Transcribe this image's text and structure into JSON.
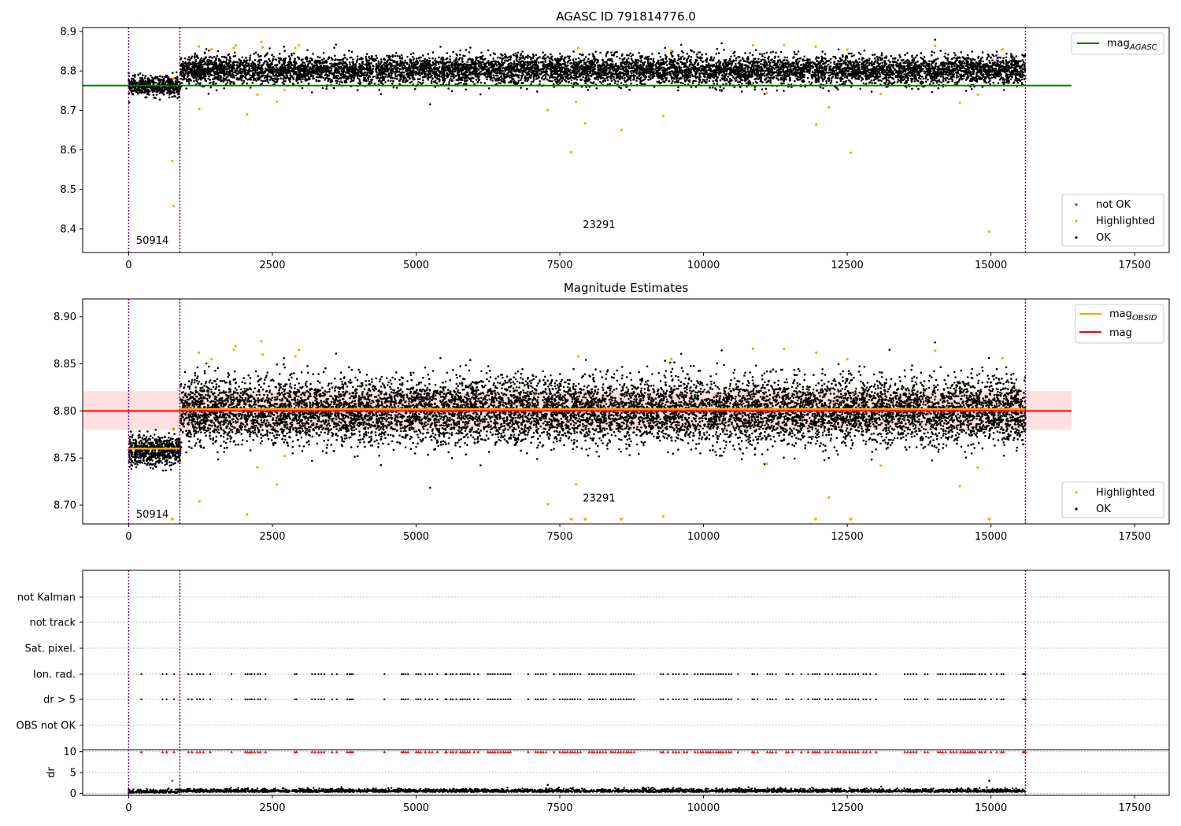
{
  "figure": {
    "title_top": "AGASC ID 791814776.0",
    "title_mid": "Magnitude Estimates"
  },
  "colors": {
    "ok": "#000000",
    "highlighted": "#ffa500",
    "not_ok": "#ff0000",
    "mag_agasc": "#008000",
    "mag_obsid": "#ffa500",
    "mag": "#ff0000",
    "band": "#ffcccc",
    "obs_boundary": "#800080",
    "grid": "#b0b0b0"
  },
  "chart_data": [
    {
      "type": "scatter",
      "title": "AGASC ID 791814776.0",
      "xlim": [
        -800,
        18100
      ],
      "ylim": [
        8.34,
        8.91
      ],
      "xticks": [
        0,
        2500,
        5000,
        7500,
        10000,
        12500,
        15000,
        17500
      ],
      "yticks": [
        8.4,
        8.5,
        8.6,
        8.7,
        8.8,
        8.9
      ],
      "obs_boundaries": [
        0,
        890,
        15600
      ],
      "obs_labels": [
        {
          "text": "50914",
          "x": 130,
          "y": 8.37
        },
        {
          "text": "23291",
          "x": 7900,
          "y": 8.41
        }
      ],
      "lines": [
        {
          "name": "mag_AGASC",
          "y": 8.763,
          "x": [
            -800,
            16400
          ]
        }
      ],
      "ok_clusters": [
        {
          "x": [
            0,
            900
          ],
          "center": 8.762,
          "spread": 0.012
        },
        {
          "x": [
            900,
            15600
          ],
          "center": 8.802,
          "spread": 0.018
        }
      ],
      "highlighted": [
        [
          760,
          8.572
        ],
        [
          780,
          8.458
        ],
        [
          780,
          8.78
        ],
        [
          1230,
          8.704
        ],
        [
          1220,
          8.862
        ],
        [
          1440,
          8.855
        ],
        [
          1830,
          8.858
        ],
        [
          1860,
          8.865
        ],
        [
          2060,
          8.69
        ],
        [
          2240,
          8.74
        ],
        [
          2310,
          8.874
        ],
        [
          2330,
          8.86
        ],
        [
          2580,
          8.722
        ],
        [
          2710,
          8.752
        ],
        [
          2900,
          8.858
        ],
        [
          2960,
          8.865
        ],
        [
          7290,
          8.701
        ],
        [
          7700,
          8.594
        ],
        [
          7780,
          8.722
        ],
        [
          7820,
          8.858
        ],
        [
          7940,
          8.667
        ],
        [
          8570,
          8.651
        ],
        [
          9300,
          8.686
        ],
        [
          9440,
          8.852
        ],
        [
          10860,
          8.865
        ],
        [
          11100,
          8.744
        ],
        [
          11400,
          8.866
        ],
        [
          11950,
          8.862
        ],
        [
          11960,
          8.664
        ],
        [
          12180,
          8.708
        ],
        [
          12500,
          8.854
        ],
        [
          12560,
          8.593
        ],
        [
          13080,
          8.742
        ],
        [
          14030,
          8.864
        ],
        [
          14460,
          8.72
        ],
        [
          14770,
          8.74
        ],
        [
          14970,
          8.393
        ],
        [
          15200,
          8.855
        ]
      ],
      "legend": [
        "mag_AGASC",
        "not OK",
        "Highlighted",
        "OK"
      ]
    },
    {
      "type": "scatter",
      "title": "Magnitude Estimates",
      "xlim": [
        -800,
        18100
      ],
      "ylim": [
        8.68,
        8.919
      ],
      "xticks": [
        0,
        2500,
        5000,
        7500,
        10000,
        12500,
        15000,
        17500
      ],
      "yticks": [
        8.7,
        8.75,
        8.8,
        8.85,
        8.9
      ],
      "obs_boundaries": [
        0,
        890,
        15600
      ],
      "obs_labels": [
        {
          "text": "50914",
          "x": 130,
          "y": 8.69
        },
        {
          "text": "23291",
          "x": 7900,
          "y": 8.707
        }
      ],
      "band": {
        "y": [
          8.78,
          8.821
        ],
        "x": [
          -800,
          16400
        ]
      },
      "lines": [
        {
          "name": "mag",
          "y": 8.8,
          "x": [
            -800,
            16400
          ]
        },
        {
          "name": "mag_OBSID",
          "segments": [
            {
              "x": [
                0,
                890
              ],
              "y": 8.76
            },
            {
              "x": [
                890,
                15600
              ],
              "y": 8.802
            }
          ]
        }
      ],
      "ok_clusters": [
        {
          "x": [
            0,
            900
          ],
          "center": 8.758,
          "spread": 0.008
        },
        {
          "x": [
            900,
            15600
          ],
          "center": 8.8,
          "spread": 0.017
        }
      ],
      "highlighted": [
        [
          760,
          8.683
        ],
        [
          780,
          8.78
        ],
        [
          1230,
          8.704
        ],
        [
          1220,
          8.862
        ],
        [
          1440,
          8.855
        ],
        [
          1830,
          8.865
        ],
        [
          1860,
          8.869
        ],
        [
          2060,
          8.69
        ],
        [
          2240,
          8.74
        ],
        [
          2310,
          8.874
        ],
        [
          2330,
          8.86
        ],
        [
          2580,
          8.722
        ],
        [
          2710,
          8.752
        ],
        [
          2900,
          8.858
        ],
        [
          2960,
          8.865
        ],
        [
          7290,
          8.701
        ],
        [
          7700,
          8.683
        ],
        [
          7780,
          8.722
        ],
        [
          7820,
          8.858
        ],
        [
          7940,
          8.683
        ],
        [
          8570,
          8.683
        ],
        [
          9300,
          8.688
        ],
        [
          9440,
          8.855
        ],
        [
          10860,
          8.866
        ],
        [
          11100,
          8.744
        ],
        [
          11400,
          8.866
        ],
        [
          11950,
          8.683
        ],
        [
          11960,
          8.862
        ],
        [
          12180,
          8.708
        ],
        [
          12500,
          8.855
        ],
        [
          12560,
          8.683
        ],
        [
          13080,
          8.742
        ],
        [
          14030,
          8.864
        ],
        [
          14460,
          8.72
        ],
        [
          14770,
          8.74
        ],
        [
          14970,
          8.683
        ],
        [
          15200,
          8.856
        ]
      ],
      "legend": [
        "mag_OBSID",
        "mag",
        "Highlighted",
        "OK"
      ]
    },
    {
      "type": "scatter",
      "title": "",
      "xlim": [
        -800,
        18100
      ],
      "categories": [
        "not Kalman",
        "not track",
        "Sat. pixel.",
        "Ion. rad.",
        "dr > 5",
        "OBS not OK"
      ],
      "obs_boundaries": [
        0,
        890,
        15600
      ],
      "flag_x": [
        220,
        590,
        660,
        790,
        1040,
        1100,
        1190,
        1240,
        1300,
        1420,
        1790,
        2030,
        2070,
        2110,
        2140,
        2190,
        2250,
        2290,
        2380,
        2890,
        2920,
        3190,
        3240,
        3300,
        3350,
        3400,
        3540,
        3620,
        3800,
        3840,
        3870,
        3900,
        4450,
        4750,
        4780,
        4820,
        4860,
        5000,
        5040,
        5080,
        5160,
        5230,
        5280,
        5370,
        5510,
        5530,
        5600,
        5640,
        5700,
        5770,
        5810,
        5850,
        5890,
        5930,
        6010,
        6080,
        6250,
        6290,
        6330,
        6370,
        6420,
        6470,
        6520,
        6560,
        6600,
        6640,
        6950,
        7080,
        7120,
        7170,
        7210,
        7260,
        7400,
        7500,
        7550,
        7590,
        7630,
        7680,
        7720,
        7760,
        7810,
        7860,
        8010,
        8060,
        8100,
        8150,
        8200,
        8250,
        8300,
        8390,
        8430,
        8470,
        8520,
        8560,
        8610,
        8660,
        8700,
        8740,
        8790,
        9260,
        9300,
        9380,
        9470,
        9520,
        9570,
        9660,
        9710,
        9850,
        9900,
        9950,
        9990,
        10040,
        10080,
        10120,
        10170,
        10220,
        10260,
        10300,
        10340,
        10390,
        10440,
        10480,
        10600,
        10850,
        10880,
        10940,
        11110,
        11160,
        11200,
        11260,
        11440,
        11480,
        11550,
        11700,
        11820,
        11900,
        11940,
        11980,
        12020,
        12120,
        12170,
        12240,
        12330,
        12380,
        12440,
        12480,
        12540,
        12590,
        12640,
        12690,
        12780,
        12830,
        12900,
        13000,
        13500,
        13550,
        13600,
        13650,
        13700,
        13850,
        13900,
        14080,
        14120,
        14160,
        14210,
        14300,
        14350,
        14400,
        14470,
        14520,
        14560,
        14600,
        14640,
        14680,
        14720,
        14800,
        14840,
        14900,
        15000,
        15100,
        15180,
        15220,
        15560,
        15580,
        15600
      ]
    },
    {
      "type": "scatter",
      "title": "",
      "ylabel": "dr",
      "xlim": [
        -800,
        18100
      ],
      "ylim": [
        -0.5,
        10.5
      ],
      "yticks": [
        0,
        5,
        10
      ],
      "xticks": [
        0,
        2500,
        5000,
        7500,
        10000,
        12500,
        15000,
        17500
      ],
      "obs_boundaries": [
        0,
        890,
        15600
      ],
      "dr_ok_level": [
        0,
        1.0
      ],
      "dr_capped_value": 10,
      "dr_outliers": [
        [
          760,
          3.0
        ],
        [
          7290,
          2.0
        ],
        [
          14970,
          3.0
        ]
      ]
    }
  ],
  "legend_top": {
    "mag_agasc": {
      "base": "mag",
      "sub": "AGASC"
    },
    "not_ok": "not OK",
    "highlighted": "Highlighted",
    "ok": "OK"
  },
  "legend_mid": {
    "mag_obsid": {
      "base": "mag",
      "sub": "OBSID"
    },
    "mag": "mag",
    "highlighted": "Highlighted",
    "ok": "OK"
  }
}
